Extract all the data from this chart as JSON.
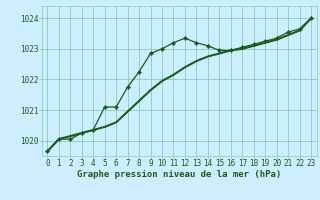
{
  "title": "Graphe pression niveau de la mer (hPa)",
  "bg_color": "#b3e8e0",
  "plot_bg_color": "#cceeff",
  "grid_color": "#88ccbb",
  "line_color": "#1a5c1a",
  "marker_color": "#1a5c1a",
  "xlim": [
    -0.5,
    23.5
  ],
  "ylim": [
    1019.5,
    1024.4
  ],
  "yticks": [
    1020,
    1021,
    1022,
    1023,
    1024
  ],
  "xticks": [
    0,
    1,
    2,
    3,
    4,
    5,
    6,
    7,
    8,
    9,
    10,
    11,
    12,
    13,
    14,
    15,
    16,
    17,
    18,
    19,
    20,
    21,
    22,
    23
  ],
  "line1_x": [
    0,
    1,
    2,
    3,
    4,
    5,
    6,
    7,
    8,
    9,
    10,
    11,
    12,
    13,
    14,
    15,
    16,
    17,
    18,
    19,
    20,
    21,
    22,
    23
  ],
  "line1_y": [
    1019.65,
    1020.05,
    1020.05,
    1020.25,
    1020.35,
    1021.1,
    1021.1,
    1021.75,
    1022.25,
    1022.85,
    1023.0,
    1023.2,
    1023.35,
    1023.2,
    1023.1,
    1022.95,
    1022.95,
    1023.05,
    1023.15,
    1023.25,
    1023.35,
    1023.55,
    1023.65,
    1024.0
  ],
  "line2_x": [
    0,
    1,
    2,
    3,
    4,
    5,
    6,
    7,
    8,
    9,
    10,
    11,
    12,
    13,
    14,
    15,
    16,
    17,
    18,
    19,
    20,
    21,
    22,
    23
  ],
  "line2_y": [
    1019.65,
    1020.05,
    1020.15,
    1020.25,
    1020.35,
    1020.45,
    1020.6,
    1020.95,
    1021.3,
    1021.65,
    1021.95,
    1022.15,
    1022.4,
    1022.6,
    1022.75,
    1022.85,
    1022.95,
    1023.0,
    1023.1,
    1023.2,
    1023.3,
    1023.45,
    1023.6,
    1024.0
  ],
  "title_fontsize": 6.5,
  "tick_fontsize": 5.5
}
